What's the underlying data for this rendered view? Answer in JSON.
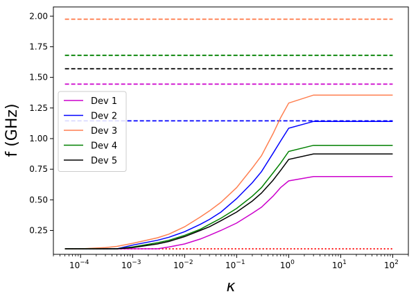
{
  "chart_data": {
    "type": "line",
    "title": "",
    "xlabel": "κ",
    "ylabel": "f (GHz)",
    "xscale": "log",
    "xlim": [
      3e-05,
      200
    ],
    "ylim": [
      0.055,
      2.075
    ],
    "grid": false,
    "legend_position": "center-left",
    "x_ticks": [
      {
        "value": 0.0001,
        "base": "10",
        "exp": "−4"
      },
      {
        "value": 0.001,
        "base": "10",
        "exp": "−3"
      },
      {
        "value": 0.01,
        "base": "10",
        "exp": "−2"
      },
      {
        "value": 0.1,
        "base": "10",
        "exp": "−1"
      },
      {
        "value": 1,
        "base": "10",
        "exp": "0"
      },
      {
        "value": 10,
        "base": "10",
        "exp": "1"
      },
      {
        "value": 100,
        "base": "10",
        "exp": "2"
      }
    ],
    "y_ticks": [
      "0.25",
      "0.50",
      "0.75",
      "1.00",
      "1.25",
      "1.50",
      "1.75",
      "2.00"
    ],
    "x": [
      5e-05,
      0.0001,
      0.0003,
      0.0005,
      0.001,
      0.003,
      0.005,
      0.01,
      0.02,
      0.03,
      0.05,
      0.1,
      0.2,
      0.3,
      0.5,
      0.7,
      1,
      3,
      10,
      30,
      100
    ],
    "series": [
      {
        "name": "Dev 1",
        "color": "#cc00cc",
        "values": [
          0.1,
          0.1,
          0.1,
          0.1,
          0.1,
          0.1,
          0.115,
          0.14,
          0.18,
          0.21,
          0.25,
          0.31,
          0.39,
          0.44,
          0.53,
          0.6,
          0.655,
          0.69,
          0.69,
          0.69,
          0.69
        ]
      },
      {
        "name": "Dev 2",
        "color": "#0000ff",
        "values": [
          0.1,
          0.1,
          0.1,
          0.1,
          0.13,
          0.17,
          0.195,
          0.24,
          0.3,
          0.34,
          0.4,
          0.51,
          0.64,
          0.73,
          0.88,
          0.98,
          1.085,
          1.14,
          1.14,
          1.14,
          1.14
        ]
      },
      {
        "name": "Dev 3",
        "color": "#ff7f50",
        "values": [
          0.1,
          0.1,
          0.11,
          0.12,
          0.145,
          0.19,
          0.22,
          0.28,
          0.36,
          0.41,
          0.48,
          0.6,
          0.76,
          0.86,
          1.04,
          1.17,
          1.29,
          1.355,
          1.355,
          1.355,
          1.355
        ]
      },
      {
        "name": "Dev 4",
        "color": "#008000",
        "values": [
          0.1,
          0.1,
          0.1,
          0.1,
          0.115,
          0.15,
          0.17,
          0.21,
          0.26,
          0.3,
          0.35,
          0.43,
          0.53,
          0.6,
          0.72,
          0.8,
          0.895,
          0.945,
          0.945,
          0.945,
          0.945
        ]
      },
      {
        "name": "Dev 5",
        "color": "#000000",
        "values": [
          0.1,
          0.1,
          0.1,
          0.1,
          0.11,
          0.14,
          0.16,
          0.2,
          0.25,
          0.28,
          0.33,
          0.4,
          0.49,
          0.555,
          0.66,
          0.74,
          0.83,
          0.875,
          0.875,
          0.875,
          0.875
        ]
      }
    ],
    "reference_lines": [
      {
        "y": 1.975,
        "color": "#ff7f50",
        "style": "dashed"
      },
      {
        "y": 1.68,
        "color": "#008000",
        "style": "dashed"
      },
      {
        "y": 1.57,
        "color": "#000000",
        "style": "dashed"
      },
      {
        "y": 1.445,
        "color": "#cc00cc",
        "style": "dashed"
      },
      {
        "y": 1.145,
        "color": "#0000ff",
        "style": "dashed"
      },
      {
        "y": 0.1,
        "color": "#ff0000",
        "style": "dotted"
      }
    ]
  }
}
